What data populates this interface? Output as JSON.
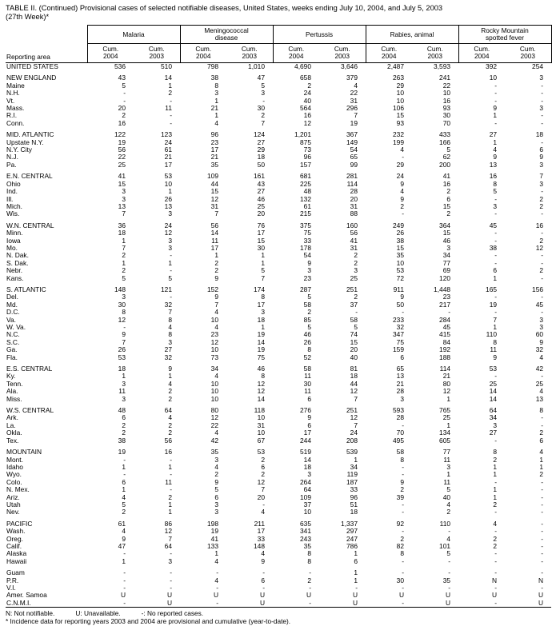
{
  "title": {
    "line1": "TABLE II. (Continued) Provisional cases of selected notifiable diseases, United States, weeks ending July 10, 2004, and July 5, 2003",
    "line2": "(27th Week)*"
  },
  "table": {
    "area_header": "Reporting area",
    "groups": [
      "Malaria",
      "Meningococcal\ndisease",
      "Pertussis",
      "Rabies, animal",
      "Rocky Mountain\nspotted fever"
    ],
    "sub": {
      "label": "Cum.",
      "years": [
        "2004",
        "2003"
      ]
    }
  },
  "sections": [
    [
      {
        "area": "UNITED STATES",
        "v": [
          "536",
          "510",
          "798",
          "1,010",
          "4,690",
          "3,646",
          "2,487",
          "3,593",
          "392",
          "254"
        ]
      }
    ],
    [
      {
        "area": "NEW ENGLAND",
        "v": [
          "43",
          "14",
          "38",
          "47",
          "658",
          "379",
          "263",
          "241",
          "10",
          "3"
        ]
      },
      {
        "area": "Maine",
        "v": [
          "5",
          "1",
          "8",
          "5",
          "2",
          "4",
          "29",
          "22",
          "-",
          "-"
        ]
      },
      {
        "area": "N.H.",
        "v": [
          "-",
          "2",
          "3",
          "3",
          "24",
          "22",
          "10",
          "10",
          "-",
          "-"
        ]
      },
      {
        "area": "Vt.",
        "v": [
          "-",
          "-",
          "1",
          "-",
          "40",
          "31",
          "10",
          "16",
          "-",
          "-"
        ]
      },
      {
        "area": "Mass.",
        "v": [
          "20",
          "11",
          "21",
          "30",
          "564",
          "296",
          "106",
          "93",
          "9",
          "3"
        ]
      },
      {
        "area": "R.I.",
        "v": [
          "2",
          "-",
          "1",
          "2",
          "16",
          "7",
          "15",
          "30",
          "1",
          "-"
        ]
      },
      {
        "area": "Conn.",
        "v": [
          "16",
          "-",
          "4",
          "7",
          "12",
          "19",
          "93",
          "70",
          "-",
          "-"
        ]
      }
    ],
    [
      {
        "area": "MID. ATLANTIC",
        "v": [
          "122",
          "123",
          "96",
          "124",
          "1,201",
          "367",
          "232",
          "433",
          "27",
          "18"
        ]
      },
      {
        "area": "Upstate N.Y.",
        "v": [
          "19",
          "24",
          "23",
          "27",
          "875",
          "149",
          "199",
          "166",
          "1",
          "-"
        ]
      },
      {
        "area": "N.Y. City",
        "v": [
          "56",
          "61",
          "17",
          "29",
          "73",
          "54",
          "4",
          "5",
          "4",
          "6"
        ]
      },
      {
        "area": "N.J.",
        "v": [
          "22",
          "21",
          "21",
          "18",
          "96",
          "65",
          "-",
          "62",
          "9",
          "9"
        ]
      },
      {
        "area": "Pa.",
        "v": [
          "25",
          "17",
          "35",
          "50",
          "157",
          "99",
          "29",
          "200",
          "13",
          "3"
        ]
      }
    ],
    [
      {
        "area": "E.N. CENTRAL",
        "v": [
          "41",
          "53",
          "109",
          "161",
          "681",
          "281",
          "24",
          "41",
          "16",
          "7"
        ]
      },
      {
        "area": "Ohio",
        "v": [
          "15",
          "10",
          "44",
          "43",
          "225",
          "114",
          "9",
          "16",
          "8",
          "3"
        ]
      },
      {
        "area": "Ind.",
        "v": [
          "3",
          "1",
          "15",
          "27",
          "48",
          "28",
          "4",
          "2",
          "5",
          "-"
        ]
      },
      {
        "area": "Ill.",
        "v": [
          "3",
          "26",
          "12",
          "46",
          "132",
          "20",
          "9",
          "6",
          "-",
          "2"
        ]
      },
      {
        "area": "Mich.",
        "v": [
          "13",
          "13",
          "31",
          "25",
          "61",
          "31",
          "2",
          "15",
          "3",
          "2"
        ]
      },
      {
        "area": "Wis.",
        "v": [
          "7",
          "3",
          "7",
          "20",
          "215",
          "88",
          "-",
          "2",
          "-",
          "-"
        ]
      }
    ],
    [
      {
        "area": "W.N. CENTRAL",
        "v": [
          "36",
          "24",
          "56",
          "76",
          "375",
          "160",
          "249",
          "364",
          "45",
          "16"
        ]
      },
      {
        "area": "Minn.",
        "v": [
          "18",
          "12",
          "14",
          "17",
          "75",
          "56",
          "26",
          "15",
          "-",
          "-"
        ]
      },
      {
        "area": "Iowa",
        "v": [
          "1",
          "3",
          "11",
          "15",
          "33",
          "41",
          "38",
          "46",
          "-",
          "2"
        ]
      },
      {
        "area": "Mo.",
        "v": [
          "7",
          "3",
          "17",
          "30",
          "178",
          "31",
          "15",
          "3",
          "38",
          "12"
        ]
      },
      {
        "area": "N. Dak.",
        "v": [
          "2",
          "-",
          "1",
          "1",
          "54",
          "2",
          "35",
          "34",
          "-",
          "-"
        ]
      },
      {
        "area": "S. Dak.",
        "v": [
          "1",
          "1",
          "2",
          "1",
          "9",
          "2",
          "10",
          "77",
          "-",
          "-"
        ]
      },
      {
        "area": "Nebr.",
        "v": [
          "2",
          "-",
          "2",
          "5",
          "3",
          "3",
          "53",
          "69",
          "6",
          "2"
        ]
      },
      {
        "area": "Kans.",
        "v": [
          "5",
          "5",
          "9",
          "7",
          "23",
          "25",
          "72",
          "120",
          "1",
          "-"
        ]
      }
    ],
    [
      {
        "area": "S. ATLANTIC",
        "v": [
          "148",
          "121",
          "152",
          "174",
          "287",
          "251",
          "911",
          "1,448",
          "165",
          "156"
        ]
      },
      {
        "area": "Del.",
        "v": [
          "3",
          "-",
          "9",
          "8",
          "5",
          "2",
          "9",
          "23",
          "-",
          "-"
        ]
      },
      {
        "area": "Md.",
        "v": [
          "30",
          "32",
          "7",
          "17",
          "58",
          "37",
          "50",
          "217",
          "19",
          "45"
        ]
      },
      {
        "area": "D.C.",
        "v": [
          "8",
          "7",
          "4",
          "3",
          "2",
          "-",
          "-",
          "-",
          "-",
          "-"
        ]
      },
      {
        "area": "Va.",
        "v": [
          "12",
          "8",
          "10",
          "18",
          "85",
          "58",
          "233",
          "284",
          "7",
          "3"
        ]
      },
      {
        "area": "W. Va.",
        "v": [
          "-",
          "4",
          "4",
          "1",
          "5",
          "5",
          "32",
          "45",
          "1",
          "3"
        ]
      },
      {
        "area": "N.C.",
        "v": [
          "9",
          "8",
          "23",
          "19",
          "46",
          "74",
          "347",
          "415",
          "110",
          "60"
        ]
      },
      {
        "area": "S.C.",
        "v": [
          "7",
          "3",
          "12",
          "14",
          "26",
          "15",
          "75",
          "84",
          "8",
          "9"
        ]
      },
      {
        "area": "Ga.",
        "v": [
          "26",
          "27",
          "10",
          "19",
          "8",
          "20",
          "159",
          "192",
          "11",
          "32"
        ]
      },
      {
        "area": "Fla.",
        "v": [
          "53",
          "32",
          "73",
          "75",
          "52",
          "40",
          "6",
          "188",
          "9",
          "4"
        ]
      }
    ],
    [
      {
        "area": "E.S. CENTRAL",
        "v": [
          "18",
          "9",
          "34",
          "46",
          "58",
          "81",
          "65",
          "114",
          "53",
          "42"
        ]
      },
      {
        "area": "Ky.",
        "v": [
          "1",
          "1",
          "4",
          "8",
          "11",
          "18",
          "13",
          "21",
          "-",
          "-"
        ]
      },
      {
        "area": "Tenn.",
        "v": [
          "3",
          "4",
          "10",
          "12",
          "30",
          "44",
          "21",
          "80",
          "25",
          "25"
        ]
      },
      {
        "area": "Ala.",
        "v": [
          "11",
          "2",
          "10",
          "12",
          "11",
          "12",
          "28",
          "12",
          "14",
          "4"
        ]
      },
      {
        "area": "Miss.",
        "v": [
          "3",
          "2",
          "10",
          "14",
          "6",
          "7",
          "3",
          "1",
          "14",
          "13"
        ]
      }
    ],
    [
      {
        "area": "W.S. CENTRAL",
        "v": [
          "48",
          "64",
          "80",
          "118",
          "276",
          "251",
          "593",
          "765",
          "64",
          "8"
        ]
      },
      {
        "area": "Ark.",
        "v": [
          "6",
          "4",
          "12",
          "10",
          "9",
          "12",
          "28",
          "25",
          "34",
          "-"
        ]
      },
      {
        "area": "La.",
        "v": [
          "2",
          "2",
          "22",
          "31",
          "6",
          "7",
          "-",
          "1",
          "3",
          "-"
        ]
      },
      {
        "area": "Okla.",
        "v": [
          "2",
          "2",
          "4",
          "10",
          "17",
          "24",
          "70",
          "134",
          "27",
          "2"
        ]
      },
      {
        "area": "Tex.",
        "v": [
          "38",
          "56",
          "42",
          "67",
          "244",
          "208",
          "495",
          "605",
          "-",
          "6"
        ]
      }
    ],
    [
      {
        "area": "MOUNTAIN",
        "v": [
          "19",
          "16",
          "35",
          "53",
          "519",
          "539",
          "58",
          "77",
          "8",
          "4"
        ]
      },
      {
        "area": "Mont.",
        "v": [
          "-",
          "-",
          "3",
          "2",
          "14",
          "1",
          "8",
          "11",
          "2",
          "1"
        ]
      },
      {
        "area": "Idaho",
        "v": [
          "1",
          "1",
          "4",
          "6",
          "18",
          "34",
          "-",
          "3",
          "1",
          "1"
        ]
      },
      {
        "area": "Wyo.",
        "v": [
          "-",
          "-",
          "2",
          "2",
          "3",
          "119",
          "-",
          "1",
          "1",
          "2"
        ]
      },
      {
        "area": "Colo.",
        "v": [
          "6",
          "11",
          "9",
          "12",
          "264",
          "187",
          "9",
          "11",
          "-",
          "-"
        ]
      },
      {
        "area": "N. Mex.",
        "v": [
          "1",
          "-",
          "5",
          "7",
          "64",
          "33",
          "2",
          "5",
          "1",
          "-"
        ]
      },
      {
        "area": "Ariz.",
        "v": [
          "4",
          "2",
          "6",
          "20",
          "109",
          "96",
          "39",
          "40",
          "1",
          "-"
        ]
      },
      {
        "area": "Utah",
        "v": [
          "5",
          "1",
          "3",
          "-",
          "37",
          "51",
          "-",
          "4",
          "2",
          "-"
        ]
      },
      {
        "area": "Nev.",
        "v": [
          "2",
          "1",
          "3",
          "4",
          "10",
          "18",
          "-",
          "2",
          "-",
          "-"
        ]
      }
    ],
    [
      {
        "area": "PACIFIC",
        "v": [
          "61",
          "86",
          "198",
          "211",
          "635",
          "1,337",
          "92",
          "110",
          "4",
          "-"
        ]
      },
      {
        "area": "Wash.",
        "v": [
          "4",
          "12",
          "19",
          "17",
          "341",
          "297",
          "-",
          "-",
          "-",
          "-"
        ]
      },
      {
        "area": "Oreg.",
        "v": [
          "9",
          "7",
          "41",
          "33",
          "243",
          "247",
          "2",
          "4",
          "2",
          "-"
        ]
      },
      {
        "area": "Calif.",
        "v": [
          "47",
          "64",
          "133",
          "148",
          "35",
          "786",
          "82",
          "101",
          "2",
          "-"
        ]
      },
      {
        "area": "Alaska",
        "v": [
          "-",
          "-",
          "1",
          "4",
          "8",
          "1",
          "8",
          "5",
          "-",
          "-"
        ]
      },
      {
        "area": "Hawaii",
        "v": [
          "1",
          "3",
          "4",
          "9",
          "8",
          "6",
          "-",
          "-",
          "-",
          "-"
        ]
      }
    ],
    [
      {
        "area": "Guam",
        "v": [
          "-",
          "-",
          "-",
          "-",
          "-",
          "1",
          "-",
          "-",
          "-",
          "-"
        ]
      },
      {
        "area": "P.R.",
        "v": [
          "-",
          "-",
          "4",
          "6",
          "2",
          "1",
          "30",
          "35",
          "N",
          "N"
        ]
      },
      {
        "area": "V.I.",
        "v": [
          "-",
          "-",
          "-",
          "-",
          "-",
          "-",
          "-",
          "-",
          "-",
          "-"
        ]
      },
      {
        "area": "Amer. Samoa",
        "v": [
          "U",
          "U",
          "U",
          "U",
          "U",
          "U",
          "U",
          "U",
          "U",
          "U"
        ]
      },
      {
        "area": "C.N.M.I.",
        "v": [
          "-",
          "U",
          "-",
          "U",
          "-",
          "U",
          "-",
          "U",
          "-",
          "U"
        ]
      }
    ]
  ],
  "footnotes": {
    "parts": [
      "N: Not notifiable.",
      "U: Unavailable.",
      "-: No reported cases."
    ],
    "asterisk": "* Incidence data for reporting years 2003 and 2004 are provisional and cumulative (year-to-date)."
  }
}
